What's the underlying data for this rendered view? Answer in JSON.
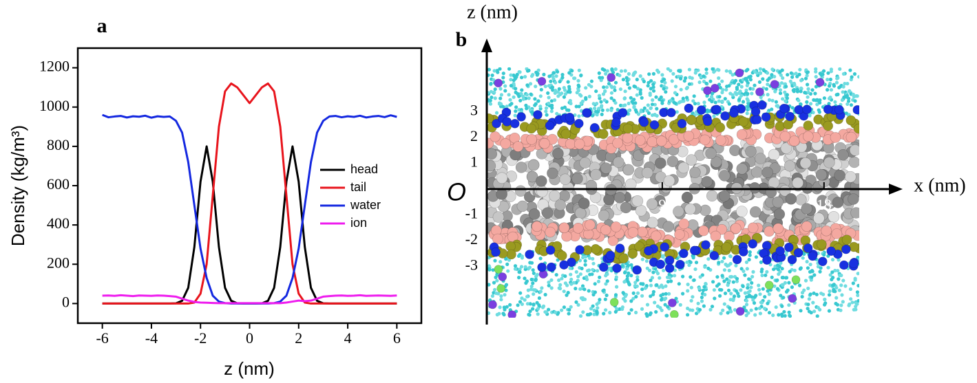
{
  "chart_data": {
    "type": "line",
    "panel_label": "a",
    "xlabel": "z (nm)",
    "ylabel": "Density (kg/m³)",
    "x": [
      -6,
      -5.75,
      -5.5,
      -5.25,
      -5,
      -4.75,
      -4.5,
      -4.25,
      -4,
      -3.75,
      -3.5,
      -3.25,
      -3,
      -2.75,
      -2.5,
      -2.25,
      -2,
      -1.75,
      -1.5,
      -1.25,
      -1,
      -0.75,
      -0.5,
      -0.25,
      0,
      0.25,
      0.5,
      0.75,
      1,
      1.25,
      1.5,
      1.75,
      2,
      2.25,
      2.5,
      2.75,
      3,
      3.25,
      3.5,
      3.75,
      4,
      4.25,
      4.5,
      4.75,
      5,
      5.25,
      5.5,
      5.75,
      6
    ],
    "series": [
      {
        "name": "head",
        "color": "#000000",
        "values": [
          0,
          0,
          0,
          0,
          0,
          0,
          0,
          0,
          0,
          0,
          0,
          0,
          1,
          14,
          80,
          288,
          620,
          800,
          620,
          288,
          80,
          14,
          1,
          0,
          0,
          0,
          1,
          14,
          80,
          288,
          620,
          800,
          620,
          288,
          80,
          14,
          1,
          0,
          0,
          0,
          0,
          0,
          0,
          0,
          0,
          0,
          0,
          0,
          0
        ]
      },
      {
        "name": "tail",
        "color": "#e8141c",
        "values": [
          0,
          0,
          0,
          0,
          0,
          0,
          0,
          0,
          0,
          0,
          0,
          0,
          0,
          0,
          0,
          5,
          50,
          200,
          550,
          900,
          1080,
          1120,
          1100,
          1060,
          1020,
          1060,
          1100,
          1120,
          1080,
          900,
          550,
          200,
          50,
          5,
          0,
          0,
          0,
          0,
          0,
          0,
          0,
          0,
          0,
          0,
          0,
          0,
          0,
          0,
          0
        ]
      },
      {
        "name": "water",
        "color": "#1428e0",
        "values": [
          960,
          948,
          952,
          955,
          947,
          953,
          951,
          956,
          946,
          953,
          950,
          952,
          930,
          870,
          720,
          500,
          280,
          130,
          40,
          10,
          2,
          0,
          0,
          0,
          0,
          0,
          0,
          0,
          2,
          10,
          40,
          130,
          280,
          500,
          720,
          870,
          930,
          952,
          955,
          948,
          953,
          950,
          956,
          947,
          952,
          955,
          949,
          958,
          950
        ]
      },
      {
        "name": "ion",
        "color": "#ee1cee",
        "values": [
          40,
          41,
          39,
          42,
          40,
          38,
          41,
          40,
          39,
          41,
          40,
          38,
          35,
          25,
          15,
          8,
          5,
          4,
          3,
          2,
          2,
          2,
          2,
          2,
          2,
          2,
          2,
          2,
          2,
          2,
          5,
          10,
          15,
          12,
          15,
          25,
          35,
          38,
          40,
          41,
          39,
          40,
          42,
          39,
          40,
          41,
          40,
          39,
          41
        ]
      }
    ],
    "xlim": [
      -7,
      7
    ],
    "ylim": [
      -100,
      1300
    ],
    "xticks": [
      -6,
      -4,
      -2,
      0,
      2,
      4,
      6
    ],
    "yticks": [
      0,
      200,
      400,
      600,
      800,
      1000,
      1200
    ],
    "legend": "right",
    "grid": false
  },
  "panel_b": {
    "label": "b",
    "z_axis_label": "z (nm)",
    "x_axis_label": "x (nm)",
    "origin_label": "O",
    "zticks": [
      3,
      2,
      1,
      -1,
      -2,
      -3
    ],
    "xticks": [
      9,
      18
    ]
  }
}
